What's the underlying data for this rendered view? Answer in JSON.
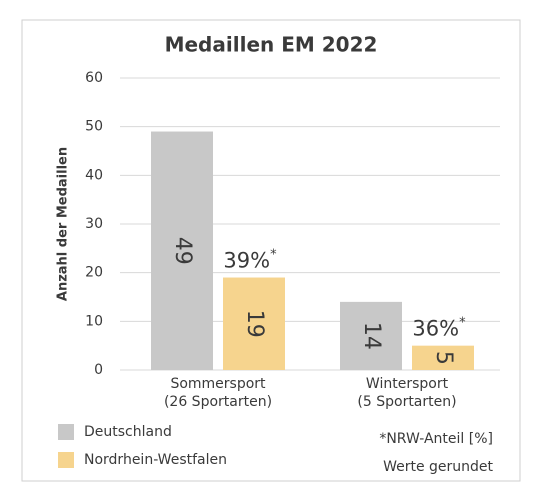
{
  "chart_data": {
    "type": "bar",
    "title": "Medaillen EM 2022",
    "y_label": "Anzahl der Medaillen",
    "categories": [
      [
        "Sommersport",
        "(26 Sportarten)"
      ],
      [
        "Wintersport",
        "(5 Sportarten)"
      ]
    ],
    "series": [
      {
        "name": "Deutschland",
        "color": "#c8c8c8",
        "values": [
          49,
          14
        ]
      },
      {
        "name": "Nordrhein-Westfalen",
        "color": "#f6d48e",
        "values": [
          19,
          5
        ]
      }
    ],
    "annotations": [
      "39%",
      "36%"
    ],
    "annotation_mark": "*",
    "notes": [
      "*NRW-Anteil [%]",
      "Werte gerundet"
    ],
    "ylim": [
      0,
      60
    ],
    "yticks": [
      0,
      10,
      20,
      30,
      40,
      50,
      60
    ],
    "grid": true,
    "legend": "bottom-left"
  }
}
